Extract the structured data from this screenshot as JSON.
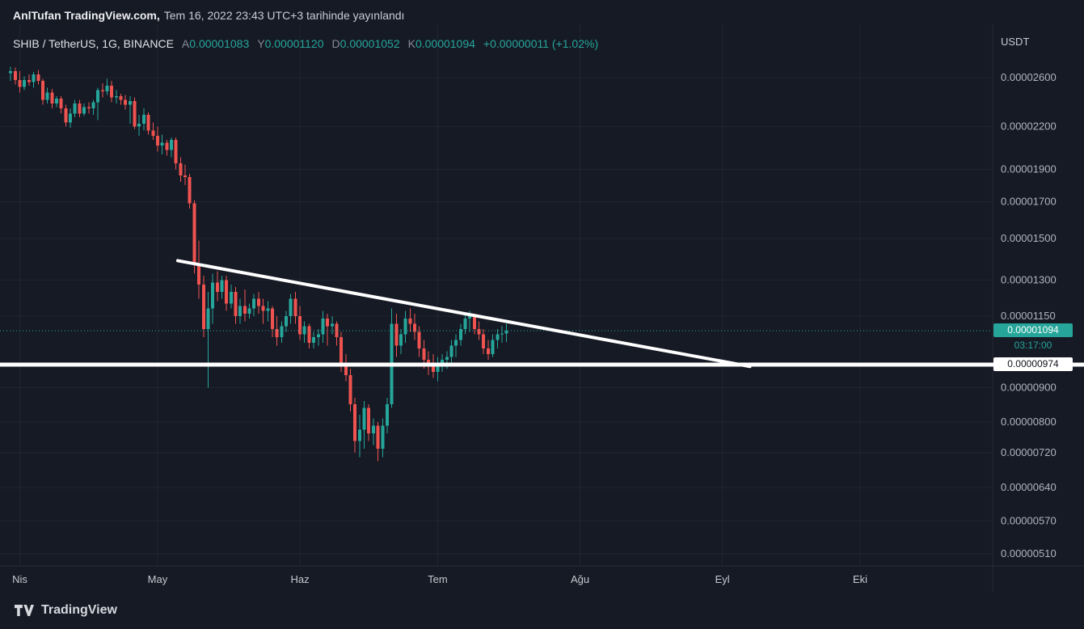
{
  "header": {
    "publisher": "AnlTufan TradingView.com,",
    "published_text": "Tem 16, 2022 23:43 UTC+3 tarihinde yayınlandı"
  },
  "legend": {
    "symbol": "SHIB / TetherUS, 1G, BINANCE",
    "open_label": "A",
    "open": "0.00001083",
    "high_label": "Y",
    "high": "0.00001120",
    "low_label": "D",
    "low": "0.00001052",
    "close_label": "K",
    "close": "0.00001094",
    "change": "+0.00000011 (+1.02%)"
  },
  "axis": {
    "currency": "USDT",
    "current_price": "0.00001094",
    "countdown": "03:17:00",
    "line_price": "0.00000974"
  },
  "footer": {
    "brand": "TradingView"
  },
  "colors": {
    "background": "#161a25",
    "up": "#26a69a",
    "down": "#ef5350",
    "drawing": "#ffffff",
    "axis_text": "#b2b5be",
    "title_text": "#d1d4dc"
  },
  "chart_data": {
    "type": "candlestick",
    "title": "SHIB / TetherUS, 1G, BINANCE",
    "exchange": "BINANCE",
    "interval": "1G (daily)",
    "quote_currency": "USDT",
    "price_multiplier": 1e-08,
    "start_date": "2022-03-30",
    "note": "ohlc rows are consecutive daily candles [open,high,low,close] in units of 0.00000001 USDT",
    "x_axis": {
      "months": [
        {
          "label": "Nis",
          "day": 2
        },
        {
          "label": "May",
          "day": 32
        },
        {
          "label": "Haz",
          "day": 63
        },
        {
          "label": "Tem",
          "day": 93
        },
        {
          "label": "Ağu",
          "day": 124
        },
        {
          "label": "Eyl",
          "day": 155
        },
        {
          "label": "Eki",
          "day": 185
        }
      ]
    },
    "y_axis": {
      "scale": "log",
      "side": "right",
      "ticks": [
        2600,
        2200,
        1900,
        1700,
        1500,
        1300,
        1150,
        900,
        800,
        720,
        640,
        570,
        510
      ]
    },
    "current_price": 1094,
    "ohlc": [
      [
        2640,
        2700,
        2570,
        2660
      ],
      [
        2660,
        2690,
        2540,
        2580
      ],
      [
        2580,
        2660,
        2470,
        2520
      ],
      [
        2520,
        2610,
        2490,
        2580
      ],
      [
        2580,
        2630,
        2530,
        2560
      ],
      [
        2560,
        2650,
        2510,
        2630
      ],
      [
        2630,
        2670,
        2540,
        2570
      ],
      [
        2570,
        2590,
        2370,
        2410
      ],
      [
        2410,
        2510,
        2380,
        2470
      ],
      [
        2470,
        2500,
        2340,
        2380
      ],
      [
        2380,
        2440,
        2350,
        2420
      ],
      [
        2420,
        2440,
        2300,
        2340
      ],
      [
        2340,
        2370,
        2200,
        2230
      ],
      [
        2230,
        2340,
        2190,
        2300
      ],
      [
        2300,
        2410,
        2270,
        2380
      ],
      [
        2380,
        2410,
        2270,
        2300
      ],
      [
        2300,
        2380,
        2280,
        2350
      ],
      [
        2350,
        2390,
        2300,
        2340
      ],
      [
        2340,
        2410,
        2290,
        2390
      ],
      [
        2390,
        2510,
        2250,
        2490
      ],
      [
        2490,
        2550,
        2430,
        2480
      ],
      [
        2480,
        2590,
        2450,
        2530
      ],
      [
        2530,
        2570,
        2390,
        2430
      ],
      [
        2430,
        2490,
        2380,
        2440
      ],
      [
        2440,
        2460,
        2370,
        2410
      ],
      [
        2410,
        2450,
        2330,
        2370
      ],
      [
        2370,
        2440,
        2220,
        2400
      ],
      [
        2400,
        2430,
        2180,
        2200
      ],
      [
        2200,
        2290,
        2130,
        2220
      ],
      [
        2220,
        2340,
        2170,
        2290
      ],
      [
        2290,
        2310,
        2140,
        2170
      ],
      [
        2170,
        2230,
        2100,
        2130
      ],
      [
        2130,
        2200,
        2020,
        2060
      ],
      [
        2060,
        2140,
        2000,
        2080
      ],
      [
        2080,
        2100,
        1990,
        2030
      ],
      [
        2030,
        2120,
        1980,
        2100
      ],
      [
        2100,
        2120,
        1900,
        1940
      ],
      [
        1940,
        1980,
        1820,
        1860
      ],
      [
        1860,
        1930,
        1800,
        1850
      ],
      [
        1850,
        1870,
        1660,
        1690
      ],
      [
        1690,
        1710,
        1330,
        1370
      ],
      [
        1370,
        1490,
        1220,
        1280
      ],
      [
        1280,
        1320,
        1070,
        1100
      ],
      [
        1100,
        1250,
        900,
        1180
      ],
      [
        1180,
        1330,
        1120,
        1290
      ],
      [
        1290,
        1340,
        1210,
        1250
      ],
      [
        1250,
        1320,
        1220,
        1300
      ],
      [
        1300,
        1320,
        1170,
        1200
      ],
      [
        1200,
        1280,
        1180,
        1250
      ],
      [
        1250,
        1270,
        1120,
        1150
      ],
      [
        1150,
        1220,
        1120,
        1190
      ],
      [
        1190,
        1260,
        1130,
        1160
      ],
      [
        1160,
        1200,
        1140,
        1180
      ],
      [
        1180,
        1240,
        1150,
        1220
      ],
      [
        1220,
        1250,
        1160,
        1190
      ],
      [
        1190,
        1220,
        1120,
        1170
      ],
      [
        1170,
        1210,
        1130,
        1180
      ],
      [
        1180,
        1190,
        1070,
        1100
      ],
      [
        1100,
        1150,
        1040,
        1070
      ],
      [
        1070,
        1130,
        1050,
        1110
      ],
      [
        1110,
        1170,
        1090,
        1150
      ],
      [
        1150,
        1240,
        1120,
        1220
      ],
      [
        1220,
        1250,
        1120,
        1150
      ],
      [
        1150,
        1190,
        1060,
        1080
      ],
      [
        1080,
        1130,
        1050,
        1110
      ],
      [
        1110,
        1120,
        1030,
        1050
      ],
      [
        1050,
        1090,
        1030,
        1070
      ],
      [
        1070,
        1100,
        1040,
        1080
      ],
      [
        1080,
        1170,
        1050,
        1140
      ],
      [
        1140,
        1160,
        1040,
        1110
      ],
      [
        1110,
        1150,
        1080,
        1120
      ],
      [
        1120,
        1130,
        1040,
        1070
      ],
      [
        1070,
        1090,
        950,
        980
      ],
      [
        980,
        1010,
        920,
        940
      ],
      [
        940,
        960,
        830,
        850
      ],
      [
        850,
        870,
        720,
        750
      ],
      [
        750,
        820,
        710,
        780
      ],
      [
        780,
        860,
        730,
        840
      ],
      [
        840,
        850,
        750,
        770
      ],
      [
        770,
        810,
        740,
        790
      ],
      [
        790,
        800,
        700,
        730
      ],
      [
        730,
        810,
        710,
        790
      ],
      [
        790,
        870,
        770,
        850
      ],
      [
        850,
        1180,
        840,
        1120
      ],
      [
        1120,
        1160,
        1000,
        1040
      ],
      [
        1040,
        1100,
        1010,
        1080
      ],
      [
        1080,
        1170,
        1050,
        1140
      ],
      [
        1140,
        1180,
        1090,
        1120
      ],
      [
        1120,
        1160,
        1060,
        1090
      ],
      [
        1090,
        1110,
        1000,
        1030
      ],
      [
        1030,
        1060,
        960,
        990
      ],
      [
        990,
        1020,
        940,
        970
      ],
      [
        970,
        1010,
        930,
        950
      ],
      [
        950,
        1000,
        920,
        980
      ],
      [
        980,
        1010,
        950,
        990
      ],
      [
        990,
        1020,
        960,
        1000
      ],
      [
        1000,
        1060,
        980,
        1040
      ],
      [
        1040,
        1080,
        1000,
        1060
      ],
      [
        1060,
        1120,
        1040,
        1100
      ],
      [
        1100,
        1160,
        1080,
        1140
      ],
      [
        1140,
        1170,
        1090,
        1150
      ],
      [
        1150,
        1160,
        1080,
        1100
      ],
      [
        1100,
        1130,
        1060,
        1080
      ],
      [
        1080,
        1100,
        1010,
        1030
      ],
      [
        1030,
        1060,
        990,
        1010
      ],
      [
        1010,
        1080,
        1000,
        1060
      ],
      [
        1060,
        1100,
        1030,
        1080
      ],
      [
        1080,
        1110,
        1050,
        1083
      ],
      [
        1083,
        1120,
        1052,
        1094
      ]
    ],
    "drawings": [
      {
        "type": "trend_line",
        "from": {
          "day": 36.4,
          "price": 1390
        },
        "to": {
          "day": 161,
          "price": 968
        },
        "color": "#ffffff",
        "width": 4
      },
      {
        "type": "horizontal_line",
        "price": 974,
        "color": "#ffffff",
        "width": 5
      }
    ]
  }
}
